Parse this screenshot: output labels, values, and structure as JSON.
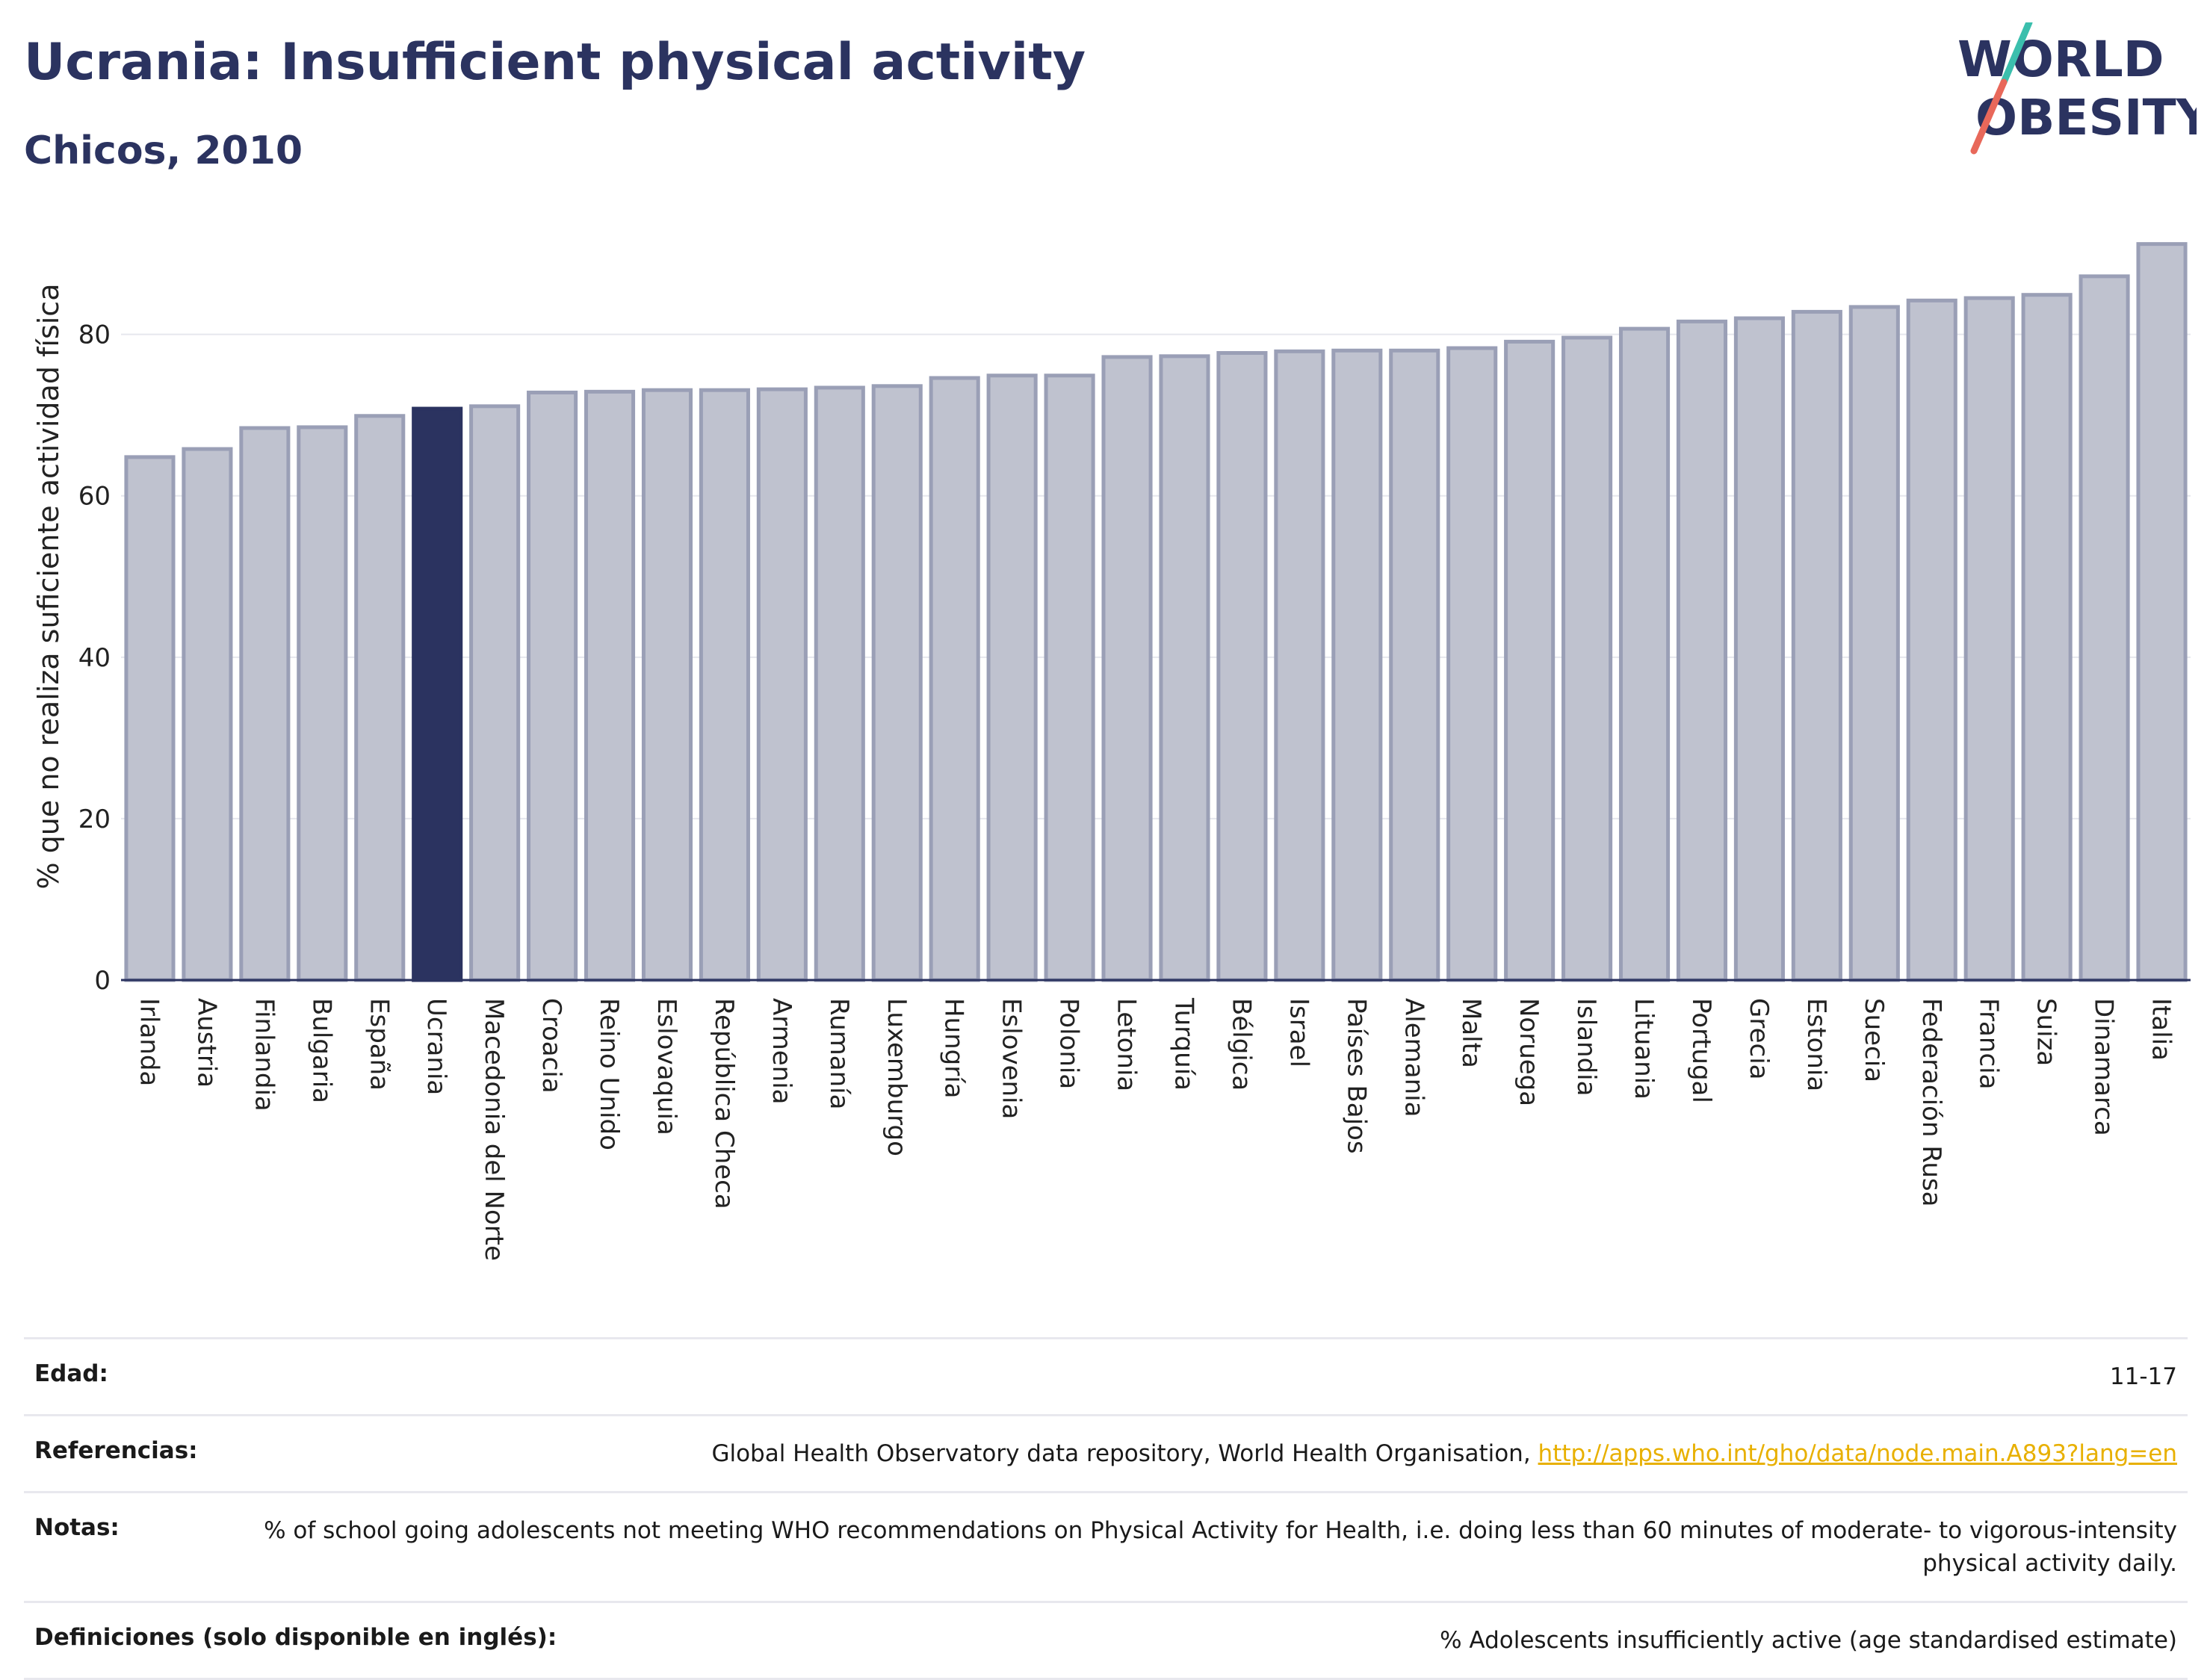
{
  "header": {
    "title": "Ucrania: Insufficient physical activity",
    "subtitle": "Chicos, 2010"
  },
  "logo": {
    "line1": "WORLD",
    "line2": "OBESITY",
    "accent_teal": "#3bbfad",
    "accent_red": "#e8685a"
  },
  "colors": {
    "bar": "#bfc2cf",
    "bar_border": "#9a9fb6",
    "highlight": "#2b3360",
    "text": "#2b3360"
  },
  "chart_data": {
    "type": "bar",
    "title": "Ucrania: Insufficient physical activity",
    "subtitle": "Chicos, 2010",
    "ylabel": "% que no realiza suficiente actividad física",
    "xlabel": "",
    "ylim": [
      0,
      92
    ],
    "yticks": [
      0,
      20,
      40,
      60,
      80
    ],
    "grid": true,
    "highlight": "Ucrania",
    "categories": [
      "Irlanda",
      "Austria",
      "Finlandia",
      "Bulgaria",
      "España",
      "Ucrania",
      "Macedonia del Norte",
      "Croacia",
      "Reino Unido",
      "Eslovaquia",
      "República Checa",
      "Armenia",
      "Rumanía",
      "Luxemburgo",
      "Hungría",
      "Eslovenia",
      "Polonia",
      "Letonia",
      "Turquía",
      "Bélgica",
      "Israel",
      "Países Bajos",
      "Alemania",
      "Malta",
      "Noruega",
      "Islandia",
      "Lituania",
      "Portugal",
      "Grecia",
      "Estonia",
      "Suecia",
      "Federación Rusa",
      "Francia",
      "Suiza",
      "Dinamarca",
      "Italia"
    ],
    "values": [
      64.8,
      65.8,
      68.4,
      68.5,
      69.9,
      70.8,
      71.1,
      72.8,
      72.9,
      73.1,
      73.1,
      73.2,
      73.4,
      73.6,
      74.6,
      74.9,
      74.9,
      77.2,
      77.3,
      77.7,
      77.9,
      78.0,
      78.0,
      78.3,
      79.1,
      79.6,
      80.7,
      81.6,
      82.0,
      82.8,
      83.4,
      84.2,
      84.5,
      84.9,
      87.2,
      91.2
    ]
  },
  "info": [
    {
      "key": "Edad:",
      "value": "11-17",
      "link": ""
    },
    {
      "key": "Referencias:",
      "value": "Global Health Observatory data repository, World Health Organisation, ",
      "link": "http://apps.who.int/gho/data/node.main.A893?lang=en"
    },
    {
      "key": "Notas:",
      "value": "% of school going adolescents not meeting WHO recommendations on Physical Activity for Health, i.e. doing less than 60 minutes of moderate- to vigorous-intensity physical activity daily.",
      "link": ""
    },
    {
      "key": "Definiciones (solo disponible en inglés):",
      "value": "% Adolescents insufficiently active (age standardised estimate)",
      "link": ""
    }
  ]
}
